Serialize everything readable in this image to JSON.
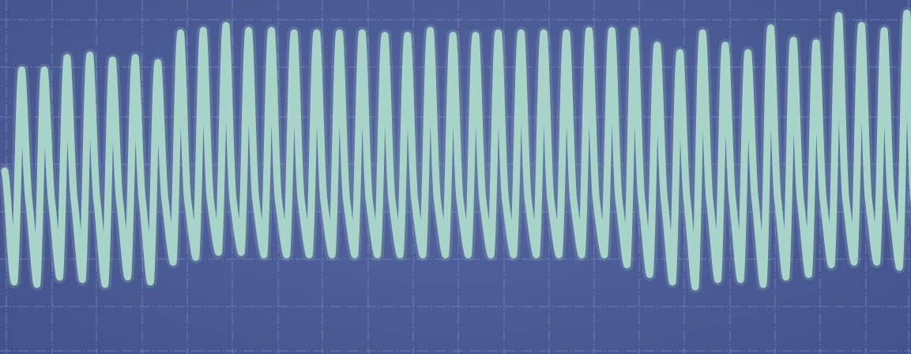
{
  "chart_data": {
    "type": "line",
    "title": "",
    "xlabel": "",
    "ylabel": "",
    "grid": true,
    "colors": {
      "screen": "#4b5b95",
      "grid": "#7f90c0",
      "trace": "#a8d3c8"
    },
    "series": [
      {
        "cycles": [
          {
            "peak": 4.6,
            "trough": -4.0
          },
          {
            "peak": 4.6,
            "trough": -4.1
          },
          {
            "peak": 5.1,
            "trough": -3.8
          },
          {
            "peak": 5.2,
            "trough": -3.9
          },
          {
            "peak": 5.0,
            "trough": -4.1
          },
          {
            "peak": 5.1,
            "trough": -3.8
          },
          {
            "peak": 4.9,
            "trough": -4.0
          },
          {
            "peak": 6.1,
            "trough": -3.2
          },
          {
            "peak": 6.2,
            "trough": -3.0
          },
          {
            "peak": 6.4,
            "trough": -2.8
          },
          {
            "peak": 6.2,
            "trough": -2.8
          },
          {
            "peak": 6.2,
            "trough": -2.9
          },
          {
            "peak": 6.1,
            "trough": -2.9
          },
          {
            "peak": 6.1,
            "trough": -2.9
          },
          {
            "peak": 6.1,
            "trough": -2.9
          },
          {
            "peak": 6.1,
            "trough": -2.9
          },
          {
            "peak": 6.0,
            "trough": -2.9
          },
          {
            "peak": 6.0,
            "trough": -2.9
          },
          {
            "peak": 6.2,
            "trough": -2.9
          },
          {
            "peak": 6.0,
            "trough": -2.9
          },
          {
            "peak": 6.0,
            "trough": -2.9
          },
          {
            "peak": 6.1,
            "trough": -2.9
          },
          {
            "peak": 6.1,
            "trough": -2.9
          },
          {
            "peak": 6.1,
            "trough": -2.9
          },
          {
            "peak": 6.1,
            "trough": -2.9
          },
          {
            "peak": 6.2,
            "trough": -2.9
          },
          {
            "peak": 6.2,
            "trough": -2.9
          },
          {
            "peak": 6.2,
            "trough": -3.3
          },
          {
            "peak": 5.6,
            "trough": -3.7
          },
          {
            "peak": 5.3,
            "trough": -4.0
          },
          {
            "peak": 6.1,
            "trough": -4.2
          },
          {
            "peak": 5.6,
            "trough": -3.9
          },
          {
            "peak": 5.3,
            "trough": -3.9
          },
          {
            "peak": 6.3,
            "trough": -4.1
          },
          {
            "peak": 5.8,
            "trough": -3.8
          },
          {
            "peak": 5.7,
            "trough": -3.7
          },
          {
            "peak": 6.8,
            "trough": -3.3
          },
          {
            "peak": 6.4,
            "trough": -3.2
          },
          {
            "peak": 6.2,
            "trough": -3.2
          },
          {
            "peak": 6.9,
            "trough": -3.4
          }
        ]
      }
    ]
  }
}
